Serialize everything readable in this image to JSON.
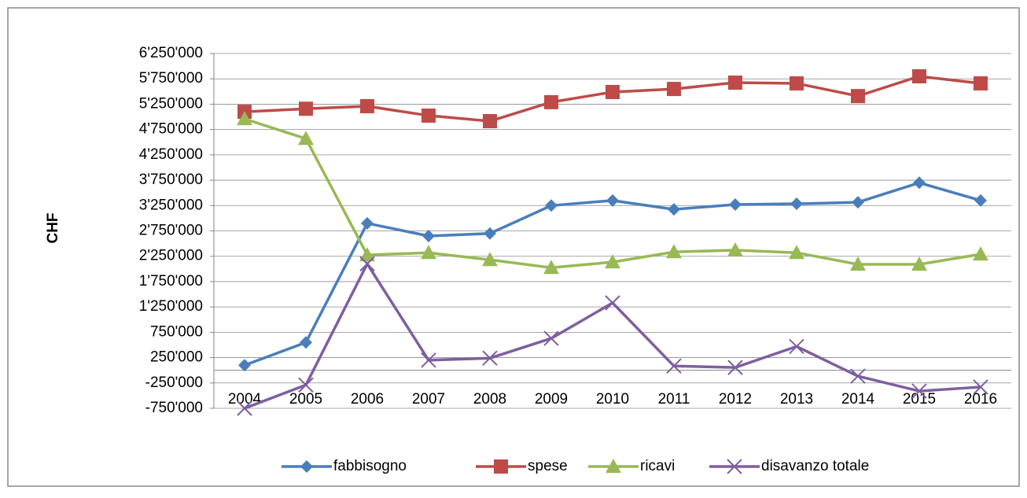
{
  "chart_data": {
    "type": "line",
    "y_label": "CHF",
    "categories": [
      "2004",
      "2005",
      "2006",
      "2007",
      "2008",
      "2009",
      "2010",
      "2011",
      "2012",
      "2013",
      "2014",
      "2015",
      "2016"
    ],
    "series": [
      {
        "name": "fabbisogno",
        "color": "#4a7ebb",
        "marker": "diamond",
        "values": [
          100000,
          550000,
          2900000,
          2650000,
          2700000,
          3250000,
          3350000,
          3175000,
          3270000,
          3285000,
          3315000,
          3700000,
          3350000
        ]
      },
      {
        "name": "spese",
        "color": "#be4b48",
        "marker": "square",
        "values": [
          5100000,
          5160000,
          5210000,
          5025000,
          4915000,
          5290000,
          5490000,
          5550000,
          5675000,
          5660000,
          5410000,
          5800000,
          5660000
        ]
      },
      {
        "name": "ricavi",
        "color": "#98b954",
        "marker": "triangle",
        "values": [
          4960000,
          4570000,
          2275000,
          2320000,
          2180000,
          2025000,
          2135000,
          2335000,
          2370000,
          2320000,
          2090000,
          2090000,
          2290000
        ]
      },
      {
        "name": "disavanzo totale",
        "color": "#7d5fa0",
        "marker": "x",
        "values": [
          -750000,
          -290000,
          2100000,
          200000,
          240000,
          630000,
          1330000,
          85000,
          55000,
          470000,
          -115000,
          -410000,
          -330000
        ]
      }
    ],
    "ylim": [
      -750000,
      6250000
    ],
    "yticks": [
      {
        "value": -750000,
        "label": "-750'000"
      },
      {
        "value": -250000,
        "label": "-250'000"
      },
      {
        "value": 250000,
        "label": "250'000"
      },
      {
        "value": 750000,
        "label": "750'000"
      },
      {
        "value": 1250000,
        "label": "1'250'000"
      },
      {
        "value": 1750000,
        "label": "1'750'000"
      },
      {
        "value": 2250000,
        "label": "2'250'000"
      },
      {
        "value": 2750000,
        "label": "2'750'000"
      },
      {
        "value": 3250000,
        "label": "3'250'000"
      },
      {
        "value": 3750000,
        "label": "3'750'000"
      },
      {
        "value": 4250000,
        "label": "4'250'000"
      },
      {
        "value": 4750000,
        "label": "4'750'000"
      },
      {
        "value": 5250000,
        "label": "5'250'000"
      },
      {
        "value": 5750000,
        "label": "5'750'000"
      },
      {
        "value": 6250000,
        "label": "6'250'000"
      }
    ],
    "grid": true,
    "legend": "bottom"
  }
}
